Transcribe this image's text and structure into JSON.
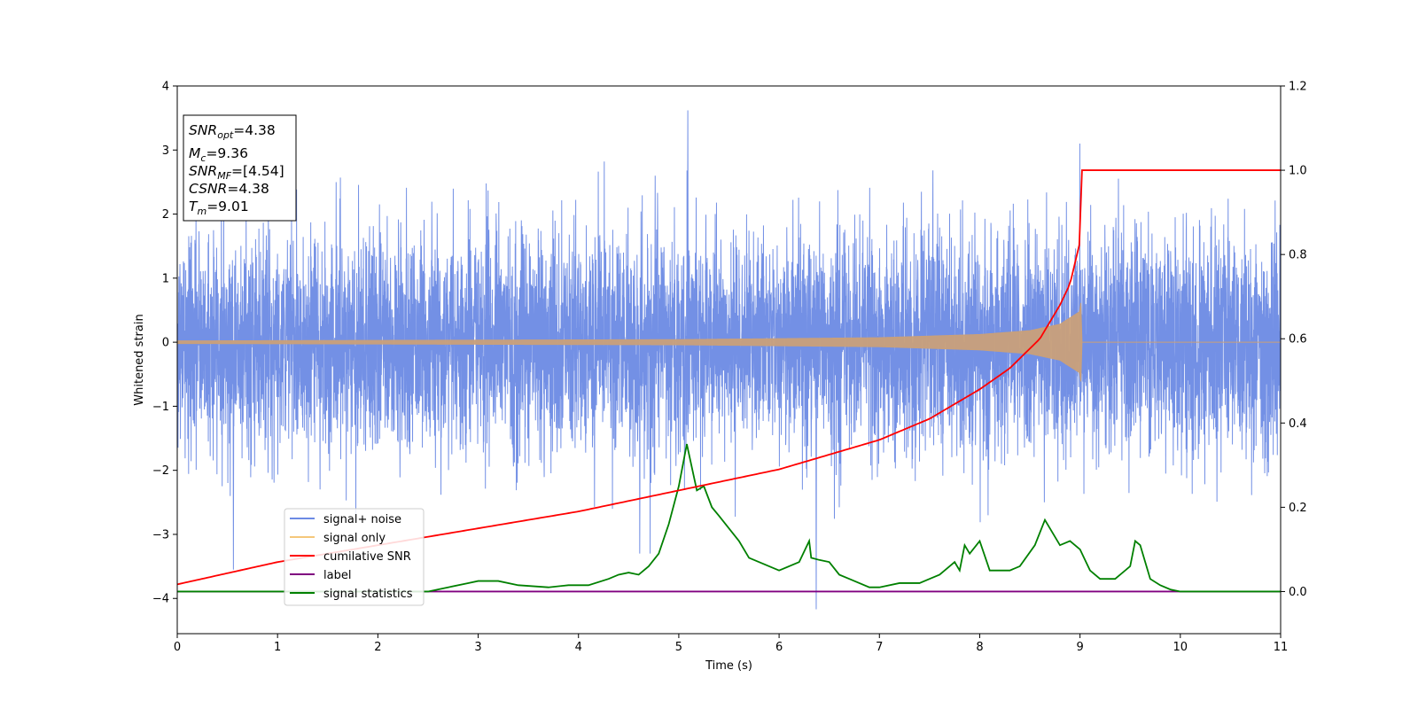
{
  "chart_data": {
    "type": "line",
    "xlabel": "Time (s)",
    "ylabel": "Whitened strain",
    "xlim": [
      0,
      11
    ],
    "ylim": [
      -4.55,
      4.0
    ],
    "y2lim": [
      -0.1,
      1.2
    ],
    "x_ticks": [
      0,
      1,
      2,
      3,
      4,
      5,
      6,
      7,
      8,
      9,
      10,
      11
    ],
    "y_ticks": [
      -4,
      -3,
      -2,
      -1,
      0,
      1,
      2,
      3,
      4
    ],
    "y_tick_labels": [
      "−4",
      "−3",
      "−2",
      "−1",
      "0",
      "1",
      "2",
      "3",
      "4"
    ],
    "y2_ticks": [
      0.0,
      0.2,
      0.4,
      0.6,
      0.8,
      1.0,
      1.2
    ],
    "y2_tick_labels": [
      "0.0",
      "0.2",
      "0.4",
      "0.6",
      "0.8",
      "1.0",
      "1.2"
    ],
    "grid": false,
    "legend_position": "lower-left",
    "annotations": {
      "snr_opt": {
        "base": "SNR",
        "sub": "opt",
        "value": "=4.38"
      },
      "mc": {
        "base": "M",
        "sub": "c",
        "value": "=9.36"
      },
      "snr_mf": {
        "base": "SNR",
        "sub": "MF",
        "value": "=[4.54]"
      },
      "csnr": {
        "base": "CSNR",
        "sub": "",
        "value": "=4.38"
      },
      "tm": {
        "base": "T",
        "sub": "m",
        "value": "=9.01"
      }
    },
    "series": [
      {
        "name": "signal+ noise",
        "color": "#6c8ae4",
        "axis": "left",
        "noise_band": [
          -1.7,
          1.7
        ],
        "max_peak": [
          5.09,
          3.62
        ],
        "min_peak": [
          6.37,
          -4.17
        ]
      },
      {
        "name": "signal only",
        "color": "#f5c77a",
        "axis": "left",
        "envelope": {
          "x": [
            0,
            5,
            7,
            8,
            8.5,
            8.8,
            9.0,
            9.01,
            9.02,
            11
          ],
          "amp": [
            0.02,
            0.04,
            0.07,
            0.12,
            0.18,
            0.28,
            0.48,
            0.65,
            0,
            0
          ]
        }
      },
      {
        "name": "cumilative SNR",
        "color": "#ff0000",
        "axis": "right",
        "x": [
          0,
          1,
          2,
          3,
          4,
          5,
          6,
          7,
          7.5,
          8,
          8.3,
          8.6,
          8.8,
          8.9,
          9.0,
          9.01,
          11
        ],
        "y": [
          0.017,
          0.07,
          0.11,
          0.15,
          0.19,
          0.24,
          0.29,
          0.36,
          0.41,
          0.48,
          0.53,
          0.6,
          0.68,
          0.73,
          0.83,
          1.0,
          1.0
        ]
      },
      {
        "name": "label",
        "color": "#800080",
        "axis": "right",
        "x": [
          0,
          11
        ],
        "y": [
          0.0,
          0.0
        ]
      },
      {
        "name": "signal statistics",
        "color": "#008000",
        "axis": "right",
        "x": [
          0,
          2.5,
          2.7,
          2.9,
          3.0,
          3.2,
          3.4,
          3.7,
          3.9,
          4.1,
          4.3,
          4.4,
          4.5,
          4.6,
          4.7,
          4.8,
          4.9,
          5.0,
          5.08,
          5.18,
          5.25,
          5.33,
          5.4,
          5.5,
          5.6,
          5.7,
          5.8,
          5.9,
          6.0,
          6.1,
          6.2,
          6.3,
          6.32,
          6.4,
          6.5,
          6.6,
          6.7,
          6.9,
          7.0,
          7.2,
          7.4,
          7.5,
          7.6,
          7.7,
          7.75,
          7.8,
          7.85,
          7.9,
          8.0,
          8.1,
          8.3,
          8.4,
          8.55,
          8.65,
          8.8,
          8.9,
          9.0,
          9.1,
          9.2,
          9.3,
          9.35,
          9.5,
          9.55,
          9.6,
          9.7,
          9.8,
          9.9,
          10.0,
          10.2,
          10.5,
          10.8,
          11.0
        ],
        "y": [
          0.0,
          0.0,
          0.01,
          0.02,
          0.025,
          0.025,
          0.015,
          0.01,
          0.015,
          0.015,
          0.03,
          0.04,
          0.045,
          0.04,
          0.06,
          0.09,
          0.16,
          0.25,
          0.35,
          0.24,
          0.25,
          0.2,
          0.18,
          0.15,
          0.12,
          0.08,
          0.07,
          0.06,
          0.05,
          0.06,
          0.07,
          0.12,
          0.08,
          0.075,
          0.07,
          0.04,
          0.03,
          0.01,
          0.01,
          0.02,
          0.02,
          0.03,
          0.04,
          0.06,
          0.07,
          0.05,
          0.11,
          0.09,
          0.12,
          0.05,
          0.05,
          0.06,
          0.11,
          0.17,
          0.11,
          0.12,
          0.1,
          0.05,
          0.03,
          0.03,
          0.03,
          0.06,
          0.12,
          0.11,
          0.03,
          0.015,
          0.005,
          0.0,
          0.0,
          0.0,
          0.0,
          0.0
        ]
      }
    ]
  }
}
